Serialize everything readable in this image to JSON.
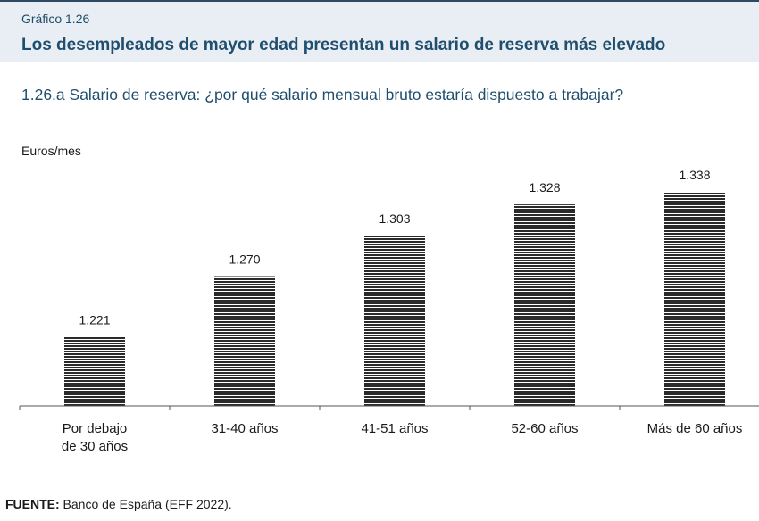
{
  "header": {
    "figure_label": "Gráfico 1.26",
    "title": "Los desempleados de mayor edad presentan un salario de reserva más elevado"
  },
  "subtitle": "1.26.a  Salario de reserva: ¿por qué salario mensual bruto estaría dispuesto a trabajar?",
  "chart_data": {
    "type": "bar",
    "ylabel": "Euros/mes",
    "categories": [
      [
        "Por debajo",
        "de 30 años"
      ],
      [
        "31-40 años"
      ],
      [
        "41-51 años"
      ],
      [
        "52-60 años"
      ],
      [
        "Más de 60 años"
      ]
    ],
    "values": [
      1221,
      1270,
      1303,
      1328,
      1338
    ],
    "value_labels": [
      "1.221",
      "1.270",
      "1.303",
      "1.328",
      "1.338"
    ],
    "ylim": [
      1165,
      1349
    ],
    "grid": false,
    "bar_color": "#2a2a2a"
  },
  "footer": {
    "source_label": "FUENTE:",
    "source_text": " Banco de España (EFF 2022)."
  }
}
